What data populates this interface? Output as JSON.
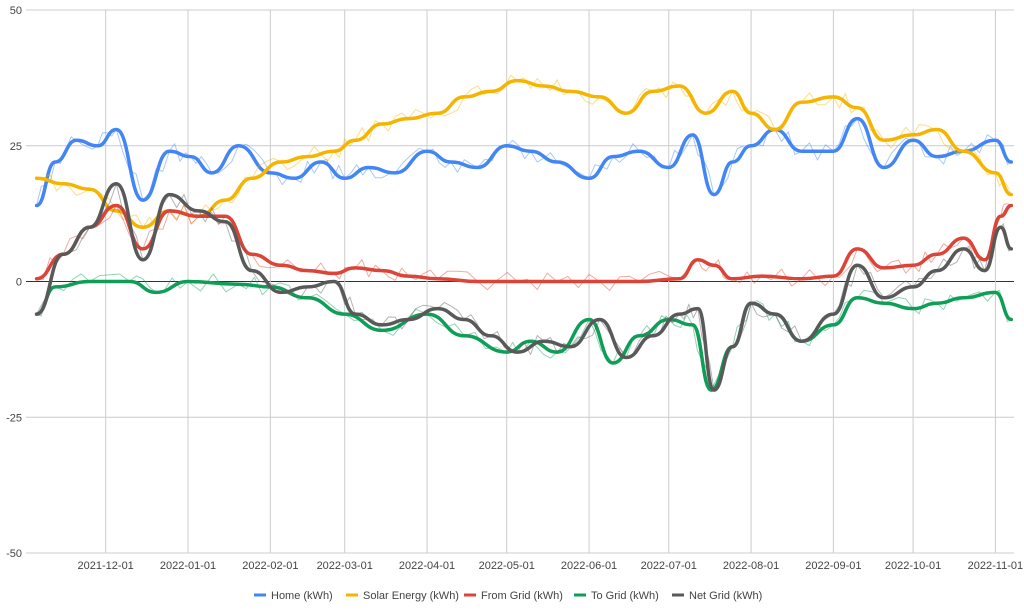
{
  "chart_data": {
    "type": "line",
    "title": "",
    "xlabel": "",
    "ylabel": "",
    "ylim": [
      -50,
      50
    ],
    "y_ticks": [
      {
        "value": 50,
        "label": "50"
      },
      {
        "value": 25,
        "label": "25"
      },
      {
        "value": 0,
        "label": "0"
      },
      {
        "value": -25,
        "label": "-25"
      },
      {
        "value": -50,
        "label": "-50"
      }
    ],
    "x_range": [
      "2021-11-01",
      "2022-11-08"
    ],
    "x_ticks": [
      "2021-12-01",
      "2022-01-01",
      "2022-02-01",
      "2022-03-01",
      "2022-04-01",
      "2022-05-01",
      "2022-06-01",
      "2022-07-01",
      "2022-08-01",
      "2022-09-01",
      "2022-10-01",
      "2022-11-01"
    ],
    "grid": true,
    "legend_position": "bottom",
    "series": [
      {
        "name": "Home (kWh)",
        "color": "#4285f4",
        "dates": [
          "2021-11-05",
          "2021-11-12",
          "2021-11-20",
          "2021-11-28",
          "2021-12-05",
          "2021-12-15",
          "2021-12-25",
          "2022-01-02",
          "2022-01-10",
          "2022-01-20",
          "2022-02-01",
          "2022-02-10",
          "2022-02-20",
          "2022-03-01",
          "2022-03-10",
          "2022-03-20",
          "2022-04-01",
          "2022-04-10",
          "2022-04-20",
          "2022-05-01",
          "2022-05-10",
          "2022-05-20",
          "2022-06-01",
          "2022-06-10",
          "2022-06-20",
          "2022-07-01",
          "2022-07-10",
          "2022-07-18",
          "2022-07-25",
          "2022-08-01",
          "2022-08-10",
          "2022-08-20",
          "2022-09-01",
          "2022-09-10",
          "2022-09-20",
          "2022-10-01",
          "2022-10-10",
          "2022-10-20",
          "2022-11-01",
          "2022-11-07"
        ],
        "values": [
          14,
          22,
          26,
          25,
          28,
          15,
          24,
          23,
          20,
          25,
          20,
          19,
          22,
          19,
          21,
          20,
          24,
          22,
          21,
          25,
          24,
          22,
          19,
          23,
          24,
          21,
          27,
          16,
          22,
          25,
          28,
          24,
          24,
          30,
          21,
          26,
          23,
          24,
          26,
          22
        ]
      },
      {
        "name": "Solar Energy (kWh)",
        "color": "#f4b400",
        "dates": [
          "2021-11-05",
          "2021-11-15",
          "2021-11-25",
          "2021-12-05",
          "2021-12-15",
          "2021-12-25",
          "2022-01-05",
          "2022-01-15",
          "2022-01-25",
          "2022-02-05",
          "2022-02-15",
          "2022-02-25",
          "2022-03-05",
          "2022-03-15",
          "2022-03-25",
          "2022-04-05",
          "2022-04-15",
          "2022-04-25",
          "2022-05-05",
          "2022-05-15",
          "2022-05-25",
          "2022-06-05",
          "2022-06-15",
          "2022-06-25",
          "2022-07-05",
          "2022-07-15",
          "2022-07-25",
          "2022-08-01",
          "2022-08-10",
          "2022-08-20",
          "2022-09-01",
          "2022-09-10",
          "2022-09-20",
          "2022-10-01",
          "2022-10-10",
          "2022-10-20",
          "2022-11-01",
          "2022-11-07"
        ],
        "values": [
          19,
          18,
          17,
          13,
          10,
          13,
          12,
          15,
          19,
          22,
          23,
          24,
          26,
          29,
          30,
          31,
          34,
          35,
          37,
          36,
          35,
          34,
          31,
          35,
          36,
          31,
          35,
          31,
          28,
          33,
          34,
          32,
          26,
          27,
          28,
          24,
          20,
          16
        ]
      },
      {
        "name": "From Grid (kWh)",
        "color": "#db4437",
        "dates": [
          "2021-11-05",
          "2021-11-15",
          "2021-11-25",
          "2021-12-05",
          "2021-12-15",
          "2021-12-25",
          "2022-01-05",
          "2022-01-15",
          "2022-01-25",
          "2022-02-05",
          "2022-02-15",
          "2022-02-25",
          "2022-03-05",
          "2022-03-15",
          "2022-03-25",
          "2022-04-05",
          "2022-04-20",
          "2022-05-05",
          "2022-05-20",
          "2022-06-05",
          "2022-06-20",
          "2022-07-05",
          "2022-07-12",
          "2022-07-18",
          "2022-07-25",
          "2022-08-05",
          "2022-08-20",
          "2022-09-01",
          "2022-09-10",
          "2022-09-20",
          "2022-10-01",
          "2022-10-10",
          "2022-10-20",
          "2022-10-28",
          "2022-11-03",
          "2022-11-07"
        ],
        "values": [
          0.5,
          5,
          10,
          14,
          6,
          13,
          12,
          12,
          5,
          3,
          2,
          1.5,
          2.5,
          2,
          1,
          0.5,
          0,
          0,
          0,
          0,
          0,
          0.5,
          4,
          3,
          0.5,
          1,
          0.5,
          1,
          6,
          2.5,
          3,
          5,
          8,
          4,
          12,
          14
        ]
      },
      {
        "name": "To Grid (kWh)",
        "color": "#0f9d58",
        "dates": [
          "2021-11-05",
          "2021-11-12",
          "2021-11-25",
          "2021-12-10",
          "2021-12-20",
          "2022-01-01",
          "2022-01-20",
          "2022-02-01",
          "2022-02-15",
          "2022-03-01",
          "2022-03-15",
          "2022-04-01",
          "2022-04-15",
          "2022-05-01",
          "2022-05-10",
          "2022-05-20",
          "2022-06-01",
          "2022-06-10",
          "2022-06-20",
          "2022-07-01",
          "2022-07-10",
          "2022-07-17",
          "2022-07-25",
          "2022-08-01",
          "2022-08-10",
          "2022-08-20",
          "2022-09-01",
          "2022-09-10",
          "2022-09-20",
          "2022-10-01",
          "2022-10-10",
          "2022-10-20",
          "2022-11-01",
          "2022-11-07"
        ],
        "values": [
          -6,
          -1,
          0,
          0,
          -2,
          0,
          -0.5,
          -1,
          -3,
          -6,
          -9,
          -6,
          -10,
          -13,
          -11,
          -13,
          -7,
          -15,
          -10,
          -7,
          -8,
          -20,
          -12,
          -4,
          -6,
          -11,
          -8,
          -3,
          -4,
          -5,
          -4,
          -3,
          -2,
          -7
        ]
      },
      {
        "name": "Net Grid (kWh)",
        "color": "#595959",
        "dates": [
          "2021-11-05",
          "2021-11-15",
          "2021-11-25",
          "2021-12-05",
          "2021-12-15",
          "2021-12-25",
          "2022-01-05",
          "2022-01-15",
          "2022-01-25",
          "2022-02-05",
          "2022-02-15",
          "2022-02-25",
          "2022-03-05",
          "2022-03-15",
          "2022-03-25",
          "2022-04-05",
          "2022-04-15",
          "2022-04-25",
          "2022-05-05",
          "2022-05-15",
          "2022-05-25",
          "2022-06-05",
          "2022-06-15",
          "2022-06-25",
          "2022-07-05",
          "2022-07-12",
          "2022-07-18",
          "2022-07-25",
          "2022-08-01",
          "2022-08-10",
          "2022-08-20",
          "2022-09-01",
          "2022-09-10",
          "2022-09-20",
          "2022-10-01",
          "2022-10-10",
          "2022-10-20",
          "2022-10-28",
          "2022-11-03",
          "2022-11-07"
        ],
        "values": [
          -6,
          5,
          10,
          18,
          4,
          16,
          13,
          11,
          2,
          -2,
          -1,
          0,
          -6,
          -8,
          -7,
          -5,
          -7,
          -10,
          -13,
          -11,
          -12,
          -7,
          -14,
          -10,
          -6,
          -5,
          -20,
          -12,
          -4,
          -6,
          -11,
          -6,
          3,
          -3,
          -1,
          2,
          6,
          2,
          10,
          6
        ]
      }
    ]
  }
}
